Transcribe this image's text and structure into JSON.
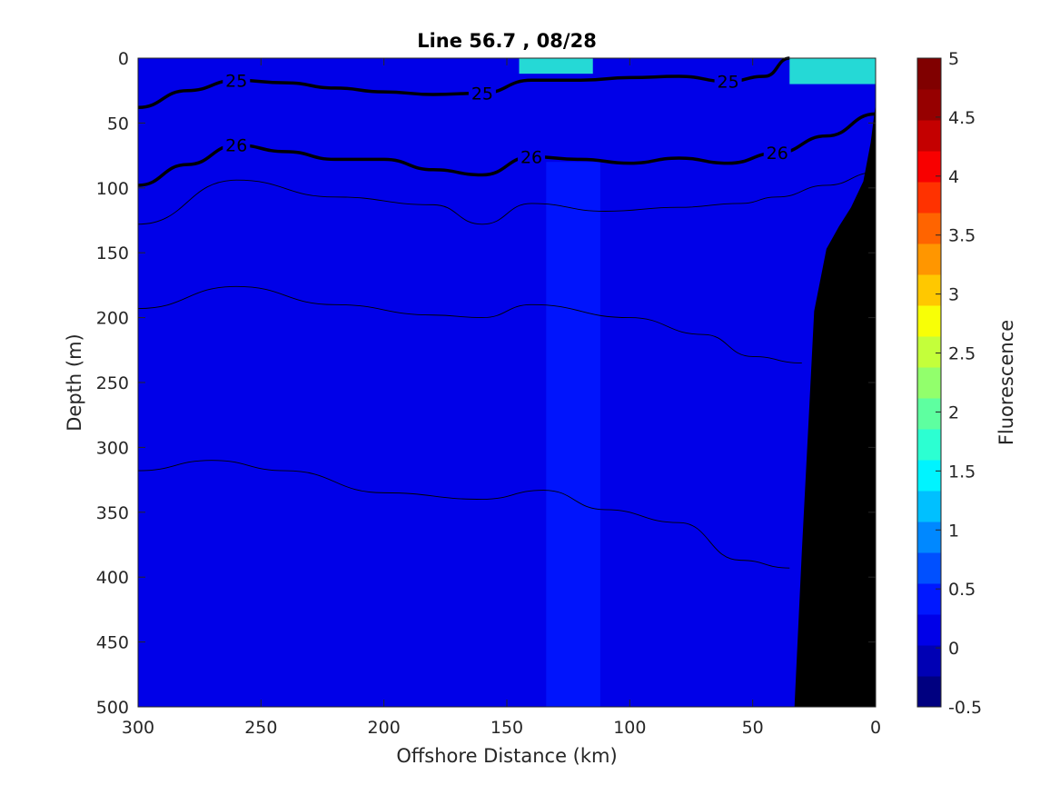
{
  "chart_data": {
    "type": "heatmap",
    "title": "Line 56.7 , 08/28",
    "xlabel": "Offshore Distance (km)",
    "ylabel": "Depth (m)",
    "xlim": [
      300,
      0
    ],
    "ylim": [
      500,
      0
    ],
    "x_reversed": true,
    "y_reversed": true,
    "x_ticks": [
      "300",
      "250",
      "200",
      "150",
      "100",
      "50",
      "0"
    ],
    "y_ticks": [
      "0",
      "50",
      "100",
      "150",
      "200",
      "250",
      "300",
      "350",
      "400",
      "450",
      "500"
    ],
    "colorbar": {
      "label": "Fluorescence",
      "range": [
        -0.5,
        5
      ],
      "ticks": [
        "-0.5",
        "0",
        "0.5",
        "1",
        "1.5",
        "2",
        "2.5",
        "3",
        "3.5",
        "4",
        "4.5",
        "5"
      ],
      "colors": [
        "#000080",
        "#0000b4",
        "#0000e8",
        "#0018ff",
        "#0050ff",
        "#0088ff",
        "#00c0ff",
        "#00f4ff",
        "#2cffd2",
        "#5effa0",
        "#92ff6c",
        "#c4ff3a",
        "#f8ff06",
        "#ffc800",
        "#ff9600",
        "#ff6400",
        "#ff3200",
        "#f80000",
        "#c40000",
        "#960000",
        "#800000"
      ]
    },
    "background_field": 0.2,
    "fluorescence_regions": [
      {
        "desc": "surface patch",
        "x_range": [
          145,
          115
        ],
        "depth_range": [
          0,
          12
        ],
        "value": 1.7
      },
      {
        "desc": "nearshore surface patch",
        "x_range": [
          35,
          0
        ],
        "depth_range": [
          0,
          20
        ],
        "value": 1.6
      },
      {
        "desc": "higher band",
        "x_range": [
          134,
          112
        ],
        "depth_range": [
          80,
          500
        ],
        "value": 0.35
      }
    ],
    "density_contours": [
      {
        "level": "25",
        "bold": true,
        "x": [
          300,
          280,
          260,
          240,
          220,
          200,
          180,
          160,
          140,
          120,
          100,
          80,
          60,
          45,
          35
        ],
        "depth": [
          38,
          25,
          17,
          19,
          23,
          26,
          28,
          27,
          17,
          17,
          15,
          14,
          18,
          14,
          0
        ]
      },
      {
        "level": "26",
        "bold": true,
        "x": [
          300,
          280,
          260,
          240,
          220,
          200,
          180,
          160,
          140,
          120,
          100,
          80,
          60,
          40,
          20,
          0
        ],
        "depth": [
          98,
          82,
          67,
          72,
          78,
          78,
          86,
          90,
          76,
          78,
          81,
          77,
          81,
          73,
          60,
          43
        ]
      },
      {
        "level": "",
        "bold": false,
        "x": [
          300,
          260,
          220,
          180,
          160,
          140,
          110,
          80,
          55,
          40,
          20,
          0
        ],
        "depth": [
          128,
          94,
          107,
          113,
          128,
          112,
          118,
          115,
          112,
          107,
          98,
          88
        ]
      },
      {
        "level": "",
        "bold": false,
        "x": [
          300,
          260,
          220,
          180,
          160,
          140,
          100,
          70,
          50,
          30
        ],
        "depth": [
          193,
          176,
          190,
          198,
          200,
          190,
          200,
          213,
          230,
          235
        ]
      },
      {
        "level": "",
        "bold": false,
        "x": [
          300,
          270,
          240,
          200,
          160,
          135,
          110,
          80,
          55,
          35
        ],
        "depth": [
          318,
          310,
          318,
          335,
          340,
          333,
          348,
          358,
          387,
          393
        ]
      }
    ],
    "bathymetry": {
      "color": "#000000",
      "x": [
        33,
        30,
        27,
        25,
        20,
        15,
        10,
        5,
        2,
        0
      ],
      "depth": [
        500,
        380,
        270,
        195,
        147,
        130,
        115,
        95,
        65,
        35
      ]
    }
  }
}
